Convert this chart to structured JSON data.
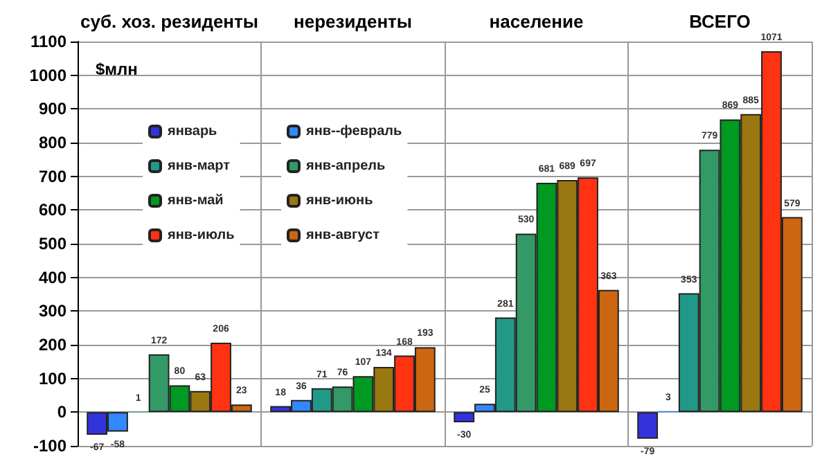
{
  "chart_data": {
    "type": "bar",
    "ylabel": "$млн",
    "categories": [
      "суб. хоз. резиденты",
      "нерезиденты",
      "население",
      "ВСЕГО"
    ],
    "ylim": [
      -100,
      1100
    ],
    "yticks": [
      -100,
      0,
      100,
      200,
      300,
      400,
      500,
      600,
      700,
      800,
      900,
      1000,
      1100
    ],
    "grid": true,
    "legend": "top left",
    "data_labels": true,
    "series": [
      {
        "name": "январь",
        "color": "#3333dd",
        "values": [
          -67,
          18,
          -30,
          -79
        ]
      },
      {
        "name": "янв--февраль",
        "color": "#3388ff",
        "values": [
          -58,
          36,
          25,
          3
        ]
      },
      {
        "name": "янв-март",
        "color": "#229988",
        "values": [
          1,
          71,
          281,
          353
        ]
      },
      {
        "name": "янв-апрель",
        "color": "#339966",
        "values": [
          172,
          76,
          530,
          779
        ]
      },
      {
        "name": "янв-май",
        "color": "#009922",
        "values": [
          80,
          107,
          681,
          869
        ]
      },
      {
        "name": "янв-июнь",
        "color": "#997711",
        "values": [
          63,
          134,
          689,
          885
        ]
      },
      {
        "name": "янв-июль",
        "color": "#ff3311",
        "values": [
          206,
          168,
          697,
          1071
        ]
      },
      {
        "name": "янв-август",
        "color": "#cc6611",
        "values": [
          23,
          193,
          363,
          579
        ]
      }
    ]
  }
}
